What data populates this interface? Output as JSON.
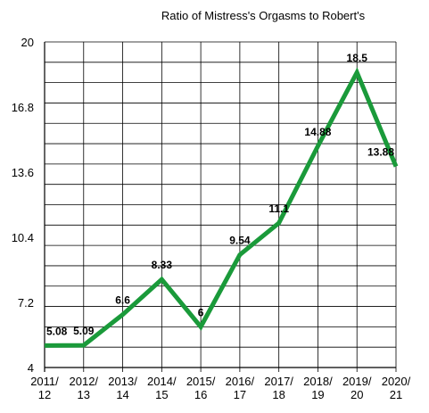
{
  "chart_data": {
    "type": "line",
    "title": "Ratio of Mistress's Orgasms to Robert's",
    "xlabel": "",
    "ylabel": "",
    "categories": [
      "2011/ 12",
      "2012/ 13",
      "2013/ 14",
      "2014/ 15",
      "2015/ 16",
      "2016/ 17",
      "2017/ 18",
      "2018/ 19",
      "2019/ 20",
      "2020/ 21"
    ],
    "category_lines": [
      [
        "2011/",
        "12"
      ],
      [
        "2012/",
        "13"
      ],
      [
        "2013/",
        "14"
      ],
      [
        "2014/",
        "15"
      ],
      [
        "2015/",
        "16"
      ],
      [
        "2016/",
        "17"
      ],
      [
        "2017/",
        "18"
      ],
      [
        "2018/",
        "19"
      ],
      [
        "2019/",
        "20"
      ],
      [
        "2020/",
        "21"
      ]
    ],
    "series": [
      {
        "values": [
          5.08,
          5.09,
          6.6,
          8.33,
          6,
          9.54,
          11.1,
          14.88,
          18.5,
          13.88
        ],
        "data_labels": [
          "5.08",
          "5.09",
          "6.6",
          "8.33",
          "6",
          "9.54",
          "11.1",
          "14.88",
          "18.5",
          "13.88"
        ],
        "color": "#1a9a3a"
      }
    ],
    "ylim": [
      4,
      20
    ],
    "yticks": [
      4,
      7.2,
      10.4,
      13.6,
      16.8,
      20
    ],
    "ytick_labels": [
      "4",
      "7.2",
      "10.4",
      "13.6",
      "16.8",
      "20"
    ],
    "grid": true,
    "legend": "none"
  }
}
